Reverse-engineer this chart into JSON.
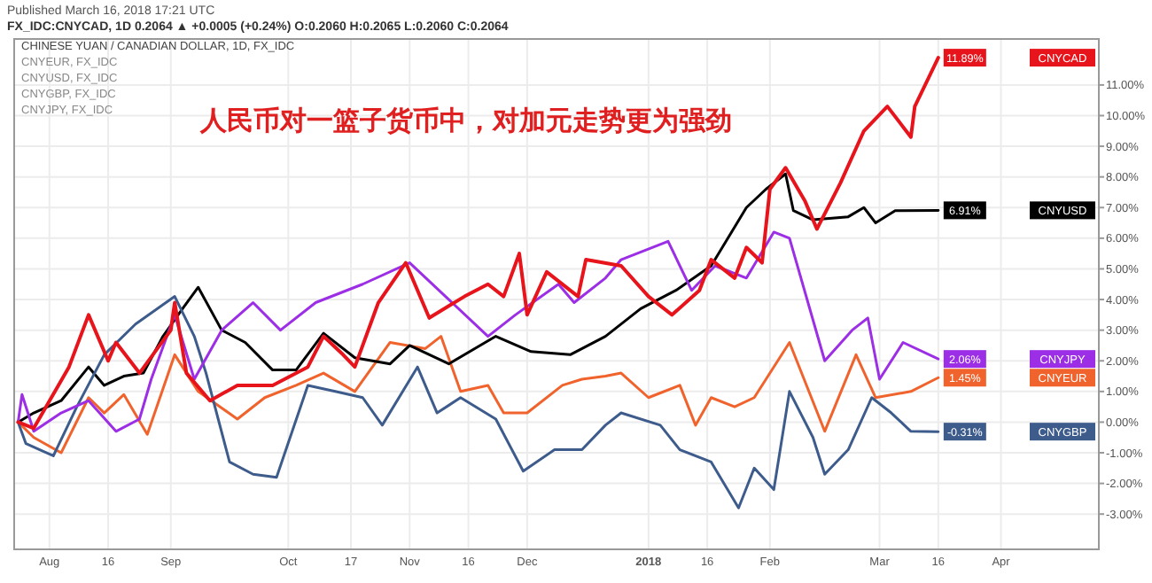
{
  "chart_data": {
    "type": "line",
    "title": "人民币对一篮子货币中，对加元走势更为强劲",
    "annotations": [
      "Published March 16, 2018 17:21 UTC",
      "FX_IDC:CNYCAD, 1D 0.2064 ▲ +0.0005 (+0.24%) O:0.2060 H:0.2065 L:0.2060 C:0.2064",
      "CHINESE YUAN / CANADIAN DOLLAR, 1D, FX_IDC",
      "CNYEUR, FX_IDC",
      "CNYUSD, FX_IDC",
      "CNYGBP, FX_IDC",
      "CNYJPY, FX_IDC"
    ],
    "xlim": [
      "2017-07-23",
      "2018-04-26"
    ],
    "xticks": [
      {
        "value": "2017-08-01",
        "label": "Aug"
      },
      {
        "value": "2017-08-16",
        "label": "16"
      },
      {
        "value": "2017-09-01",
        "label": "Sep"
      },
      {
        "value": "2017-10-01",
        "label": "Oct"
      },
      {
        "value": "2017-10-17",
        "label": "17"
      },
      {
        "value": "2017-11-01",
        "label": "Nov"
      },
      {
        "value": "2017-11-16",
        "label": "16"
      },
      {
        "value": "2017-12-01",
        "label": "Dec"
      },
      {
        "value": "2018-01-01",
        "label": "2018"
      },
      {
        "value": "2018-01-16",
        "label": "16"
      },
      {
        "value": "2018-02-01",
        "label": "Feb"
      },
      {
        "value": "2018-03-01",
        "label": "Mar"
      },
      {
        "value": "2018-03-16",
        "label": "16"
      },
      {
        "value": "2018-04-01",
        "label": "Apr"
      }
    ],
    "ylim": [
      -4.15,
      12.5
    ],
    "yticks": [
      {
        "value": -3,
        "label": "-3.00%"
      },
      {
        "value": -2,
        "label": "-2.00%"
      },
      {
        "value": -1,
        "label": "-1.00%"
      },
      {
        "value": 0,
        "label": "0.00%"
      },
      {
        "value": 1,
        "label": "1.00%"
      },
      {
        "value": 2,
        "label": "2.00%"
      },
      {
        "value": 3,
        "label": "3.00%"
      },
      {
        "value": 4,
        "label": "4.00%"
      },
      {
        "value": 5,
        "label": "5.00%"
      },
      {
        "value": 6,
        "label": "6.00%"
      },
      {
        "value": 7,
        "label": "7.00%"
      },
      {
        "value": 8,
        "label": "8.00%"
      },
      {
        "value": 9,
        "label": "9.00%"
      },
      {
        "value": 10,
        "label": "10.00%"
      },
      {
        "value": 11,
        "label": "11.00%"
      }
    ],
    "grid": true,
    "line_style": "solid",
    "marker": "none",
    "legend": "right",
    "series": [
      {
        "name": "CNYEUR",
        "color": "#f0632c",
        "x": [
          "2017-07-24",
          "2017-07-28",
          "2017-08-04",
          "2017-08-11",
          "2017-08-15",
          "2017-08-20",
          "2017-08-26",
          "2017-09-02",
          "2017-09-08",
          "2017-09-18",
          "2017-09-25",
          "2017-10-03",
          "2017-10-10",
          "2017-10-18",
          "2017-10-27",
          "2017-11-05",
          "2017-11-09",
          "2017-11-14",
          "2017-11-21",
          "2017-11-25",
          "2017-12-01",
          "2017-12-10",
          "2017-12-15",
          "2017-12-21",
          "2017-12-25",
          "2018-01-01",
          "2018-01-09",
          "2018-01-13",
          "2018-01-17",
          "2018-01-23",
          "2018-01-28",
          "2018-02-06",
          "2018-02-15",
          "2018-02-23",
          "2018-02-28",
          "2018-03-09",
          "2018-03-16"
        ],
        "values": [
          0,
          -0.5,
          -1.0,
          0.8,
          0.3,
          0.9,
          -0.4,
          2.2,
          1.0,
          0.1,
          0.8,
          1.2,
          1.6,
          1.0,
          2.6,
          2.4,
          2.8,
          1.0,
          1.2,
          0.3,
          0.3,
          1.2,
          1.4,
          1.5,
          1.6,
          0.8,
          1.2,
          -0.1,
          0.8,
          0.5,
          0.8,
          2.6,
          -0.3,
          2.2,
          0.8,
          1.0,
          1.45
        ],
        "value_labels": [
          null,
          null,
          null,
          null,
          null,
          null,
          null,
          null,
          null,
          null,
          null,
          null,
          null,
          null,
          null,
          null,
          null,
          null,
          null,
          null,
          null,
          null,
          null,
          null,
          null,
          null,
          null,
          null,
          null,
          null,
          null,
          null,
          null,
          null,
          null,
          null,
          "1.45%"
        ]
      },
      {
        "name": "CNYUSD",
        "color": "#000000",
        "x": [
          "2017-07-24",
          "2017-07-28",
          "2017-08-04",
          "2017-08-11",
          "2017-08-15",
          "2017-08-20",
          "2017-08-25",
          "2017-08-30",
          "2017-09-04",
          "2017-09-08",
          "2017-09-14",
          "2017-09-20",
          "2017-09-27",
          "2017-10-03",
          "2017-10-10",
          "2017-10-18",
          "2017-10-27",
          "2017-11-01",
          "2017-11-11",
          "2017-11-23",
          "2017-12-02",
          "2017-12-12",
          "2017-12-21",
          "2017-12-30",
          "2018-01-08",
          "2018-01-17",
          "2018-01-26",
          "2018-01-31",
          "2018-02-05",
          "2018-02-07",
          "2018-02-12",
          "2018-02-21",
          "2018-02-25",
          "2018-02-28",
          "2018-03-05",
          "2018-03-16"
        ],
        "values": [
          0,
          0.3,
          0.7,
          1.8,
          1.2,
          1.5,
          1.6,
          2.8,
          3.7,
          4.4,
          3.0,
          2.6,
          1.7,
          1.7,
          2.9,
          2.1,
          1.9,
          2.5,
          1.9,
          2.8,
          2.3,
          2.2,
          2.8,
          3.7,
          4.3,
          5.1,
          7.0,
          7.6,
          8.1,
          6.9,
          6.6,
          6.7,
          7.0,
          6.5,
          6.9,
          6.91
        ],
        "value_labels": [
          null,
          null,
          null,
          null,
          null,
          null,
          null,
          null,
          null,
          null,
          null,
          null,
          null,
          null,
          null,
          null,
          null,
          null,
          null,
          null,
          null,
          null,
          null,
          null,
          null,
          null,
          null,
          null,
          null,
          null,
          null,
          null,
          null,
          null,
          null,
          "6.91%"
        ]
      },
      {
        "name": "CNYGBP",
        "color": "#3d5c8c",
        "x": [
          "2017-07-24",
          "2017-07-26",
          "2017-08-02",
          "2017-08-08",
          "2017-08-15",
          "2017-08-23",
          "2017-09-02",
          "2017-09-07",
          "2017-09-10",
          "2017-09-16",
          "2017-09-22",
          "2017-09-28",
          "2017-10-06",
          "2017-10-13",
          "2017-10-20",
          "2017-10-25",
          "2017-11-03",
          "2017-11-08",
          "2017-11-14",
          "2017-11-23",
          "2017-11-30",
          "2017-12-08",
          "2017-12-15",
          "2017-12-21",
          "2017-12-25",
          "2018-01-04",
          "2018-01-09",
          "2018-01-17",
          "2018-01-24",
          "2018-01-28",
          "2018-02-02",
          "2018-02-06",
          "2018-02-12",
          "2018-02-15",
          "2018-02-21",
          "2018-02-27",
          "2018-03-04",
          "2018-03-09",
          "2018-03-16"
        ],
        "values": [
          0,
          -0.7,
          -1.1,
          0.5,
          2.2,
          3.2,
          4.1,
          2.8,
          1.6,
          -1.3,
          -1.7,
          -1.8,
          1.2,
          1.0,
          0.8,
          -0.1,
          1.8,
          0.3,
          0.8,
          0.1,
          -1.6,
          -0.9,
          -0.9,
          -0.1,
          0.3,
          -0.1,
          -0.9,
          -1.3,
          -2.8,
          -1.5,
          -2.2,
          1.0,
          -0.5,
          -1.7,
          -0.9,
          0.8,
          0.3,
          -0.3,
          -0.31
        ],
        "value_labels": [
          null,
          null,
          null,
          null,
          null,
          null,
          null,
          null,
          null,
          null,
          null,
          null,
          null,
          null,
          null,
          null,
          null,
          null,
          null,
          null,
          null,
          null,
          null,
          null,
          null,
          null,
          null,
          null,
          null,
          null,
          null,
          null,
          null,
          null,
          null,
          null,
          null,
          null,
          "-0.31%"
        ]
      },
      {
        "name": "CNYJPY",
        "color": "#9c2ee6",
        "x": [
          "2017-07-24",
          "2017-07-25",
          "2017-07-28",
          "2017-08-04",
          "2017-08-11",
          "2017-08-18",
          "2017-08-24",
          "2017-08-27",
          "2017-09-02",
          "2017-09-07",
          "2017-09-14",
          "2017-09-22",
          "2017-09-29",
          "2017-10-08",
          "2017-10-20",
          "2017-11-01",
          "2017-11-11",
          "2017-11-21",
          "2017-11-28",
          "2017-12-09",
          "2017-12-13",
          "2017-12-21",
          "2017-12-25",
          "2018-01-06",
          "2018-01-12",
          "2018-01-18",
          "2018-01-26",
          "2018-02-02",
          "2018-02-06",
          "2018-02-15",
          "2018-02-22",
          "2018-02-26",
          "2018-03-01",
          "2018-03-07",
          "2018-03-16"
        ],
        "values": [
          0,
          0.9,
          -0.3,
          0.3,
          0.7,
          -0.3,
          0.1,
          1.4,
          3.5,
          1.4,
          3.0,
          3.9,
          3.0,
          3.9,
          4.5,
          5.2,
          4.0,
          2.8,
          3.5,
          4.5,
          3.9,
          4.7,
          5.3,
          5.9,
          4.3,
          5.1,
          4.7,
          6.2,
          6.0,
          2.0,
          3.0,
          3.4,
          1.4,
          2.6,
          2.06
        ],
        "value_labels": [
          null,
          null,
          null,
          null,
          null,
          null,
          null,
          null,
          null,
          null,
          null,
          null,
          null,
          null,
          null,
          null,
          null,
          null,
          null,
          null,
          null,
          null,
          null,
          null,
          null,
          null,
          null,
          null,
          null,
          null,
          null,
          null,
          null,
          null,
          "2.06%"
        ]
      },
      {
        "name": "CNYCAD",
        "color": "#e8141c",
        "x": [
          "2017-07-24",
          "2017-07-28",
          "2017-08-06",
          "2017-08-11",
          "2017-08-16",
          "2017-08-18",
          "2017-08-24",
          "2017-09-01",
          "2017-09-02",
          "2017-09-05",
          "2017-09-11",
          "2017-09-18",
          "2017-09-27",
          "2017-10-06",
          "2017-10-10",
          "2017-10-15",
          "2017-10-18",
          "2017-10-24",
          "2017-10-31",
          "2017-11-06",
          "2017-11-15",
          "2017-11-21",
          "2017-11-25",
          "2017-11-29",
          "2017-12-01",
          "2017-12-06",
          "2017-12-14",
          "2017-12-16",
          "2017-12-25",
          "2018-01-01",
          "2018-01-07",
          "2018-01-14",
          "2018-01-17",
          "2018-01-23",
          "2018-01-26",
          "2018-01-30",
          "2018-02-01",
          "2018-02-05",
          "2018-02-10",
          "2018-02-13",
          "2018-02-19",
          "2018-02-25",
          "2018-03-03",
          "2018-03-09",
          "2018-03-10",
          "2018-03-16"
        ],
        "values": [
          0,
          -0.2,
          1.8,
          3.5,
          2.0,
          2.6,
          1.6,
          3.0,
          3.9,
          1.6,
          0.7,
          1.2,
          1.2,
          1.8,
          2.8,
          2.2,
          1.8,
          3.9,
          5.2,
          3.4,
          4.1,
          4.5,
          4.1,
          5.5,
          3.5,
          4.9,
          4.1,
          5.3,
          5.1,
          4.1,
          3.5,
          4.3,
          5.3,
          4.7,
          5.7,
          5.2,
          7.6,
          8.3,
          7.2,
          6.3,
          7.8,
          9.5,
          10.3,
          9.3,
          10.3,
          11.89
        ],
        "value_labels": [
          null,
          null,
          null,
          null,
          null,
          null,
          null,
          null,
          null,
          null,
          null,
          null,
          null,
          null,
          null,
          null,
          null,
          null,
          null,
          null,
          null,
          null,
          null,
          null,
          null,
          null,
          null,
          null,
          null,
          null,
          null,
          null,
          null,
          null,
          null,
          null,
          null,
          null,
          null,
          null,
          null,
          null,
          null,
          null,
          null,
          "11.89%"
        ]
      }
    ]
  }
}
